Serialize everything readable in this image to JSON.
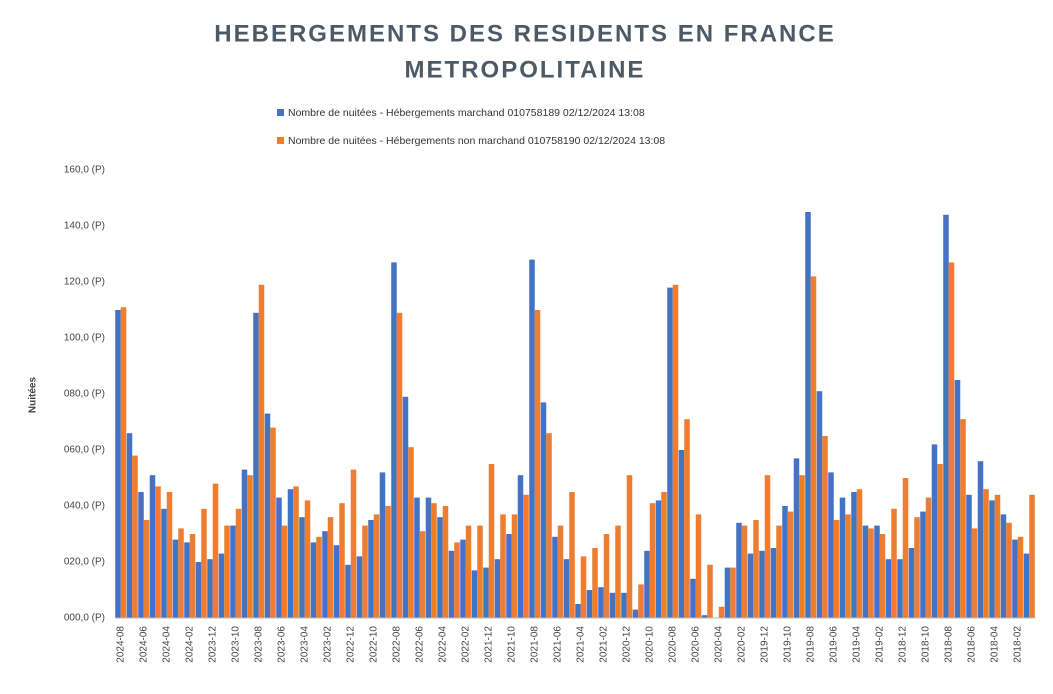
{
  "chart_data": {
    "type": "bar",
    "title": "HEBERGEMENTS  DES RESIDENTS EN FRANCE",
    "subtitle": "METROPOLITAINE",
    "y_label": "Nuitées",
    "categories": [
      "2024-08",
      null,
      "2024-06",
      null,
      "2024-04",
      null,
      "2024-02",
      null,
      "2023-12",
      null,
      "2023-10",
      null,
      "2023-08",
      null,
      "2023-06",
      null,
      "2023-04",
      null,
      "2023-02",
      null,
      "2022-12",
      null,
      "2022-10",
      null,
      "2022-08",
      null,
      "2022-06",
      null,
      "2022-04",
      null,
      "2022-02",
      null,
      "2021-12",
      null,
      "2021-10",
      null,
      "2021-08",
      null,
      "2021-06",
      null,
      "2021-04",
      null,
      "2021-02",
      null,
      "2020-12",
      null,
      "2020-10",
      null,
      "2020-08",
      null,
      "2020-06",
      null,
      "2020-04",
      null,
      "2020-02",
      null,
      "2019-12",
      null,
      "2019-10",
      null,
      "2019-08",
      null,
      "2019-06",
      null,
      "2019-04",
      null,
      "2019-02",
      null,
      "2018-12",
      null,
      "2018-10",
      null,
      "2018-08",
      null,
      "2018-06",
      null,
      "2018-04",
      null,
      "2018-02",
      null
    ],
    "series": [
      {
        "name": "Nombre de nuitées - Hébergements marchand 010758189 02/12/2024 13:08",
        "color": "#4472c4",
        "values": [
          110,
          66,
          45,
          51,
          39,
          28,
          27,
          20,
          21,
          23,
          33,
          53,
          109,
          73,
          43,
          46,
          36,
          27,
          31,
          26,
          19,
          22,
          35,
          52,
          127,
          79,
          43,
          43,
          36,
          24,
          28,
          17,
          18,
          21,
          30,
          51,
          128,
          77,
          29,
          21,
          5,
          10,
          11,
          9,
          9,
          3,
          24,
          42,
          118,
          60,
          14,
          1,
          0,
          18,
          34,
          23,
          24,
          25,
          40,
          57,
          145,
          81,
          52,
          43,
          45,
          33,
          33,
          21,
          21,
          25,
          38,
          62,
          144,
          85,
          44,
          56,
          42,
          37,
          28,
          23
        ]
      },
      {
        "name": "Nombre de nuitées - Hébergements non marchand 010758190 02/12/2024 13:08",
        "color": "#ed7d31",
        "values": [
          111,
          58,
          35,
          47,
          45,
          32,
          30,
          39,
          48,
          33,
          39,
          51,
          119,
          68,
          33,
          47,
          42,
          29,
          36,
          41,
          53,
          33,
          37,
          40,
          109,
          61,
          31,
          41,
          40,
          27,
          33,
          33,
          55,
          37,
          37,
          44,
          110,
          66,
          33,
          45,
          22,
          25,
          30,
          33,
          51,
          12,
          41,
          45,
          119,
          71,
          37,
          19,
          4,
          18,
          33,
          35,
          51,
          33,
          38,
          51,
          122,
          65,
          35,
          37,
          46,
          32,
          30,
          39,
          50,
          36,
          43,
          55,
          127,
          71,
          32,
          46,
          44,
          34,
          29,
          44
        ]
      }
    ],
    "ylim": [
      0,
      160
    ],
    "yticks": [
      {
        "value": 0,
        "label": "000,0 (P)"
      },
      {
        "value": 20,
        "label": "020,0 (P)"
      },
      {
        "value": 40,
        "label": "040,0 (P)"
      },
      {
        "value": 60,
        "label": "060,0 (P)"
      },
      {
        "value": 80,
        "label": "080,0 (P)"
      },
      {
        "value": 100,
        "label": "100,0 (P)"
      },
      {
        "value": 120,
        "label": "120,0 (P)"
      },
      {
        "value": 140,
        "label": "140,0 (P)"
      },
      {
        "value": 160,
        "label": "160,0 (P)"
      }
    ],
    "grid": false
  }
}
